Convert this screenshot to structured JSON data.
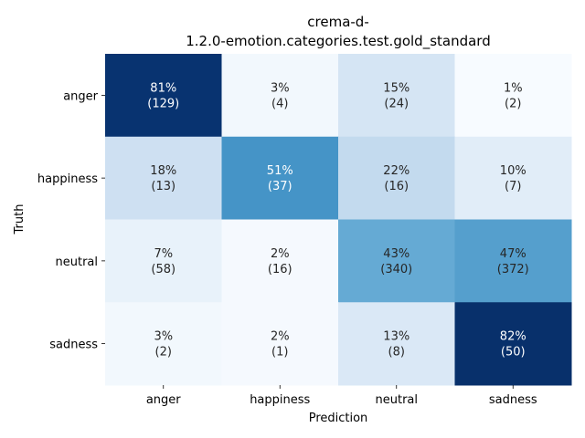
{
  "chart_data": {
    "type": "heatmap",
    "title_lines": [
      "crema-d-",
      "1.2.0-emotion.categories.test.gold_standard"
    ],
    "xlabel": "Prediction",
    "ylabel": "Truth",
    "x_categories": [
      "anger",
      "happiness",
      "neutral",
      "sadness"
    ],
    "y_categories": [
      "anger",
      "happiness",
      "neutral",
      "sadness"
    ],
    "percent": [
      [
        81,
        3,
        15,
        1
      ],
      [
        18,
        51,
        22,
        10
      ],
      [
        7,
        2,
        43,
        47
      ],
      [
        3,
        2,
        13,
        82
      ]
    ],
    "counts": [
      [
        129,
        4,
        24,
        2
      ],
      [
        13,
        37,
        16,
        7
      ],
      [
        58,
        16,
        340,
        372
      ],
      [
        2,
        1,
        8,
        50
      ]
    ],
    "colormap": "Blues",
    "colorbar": false
  }
}
